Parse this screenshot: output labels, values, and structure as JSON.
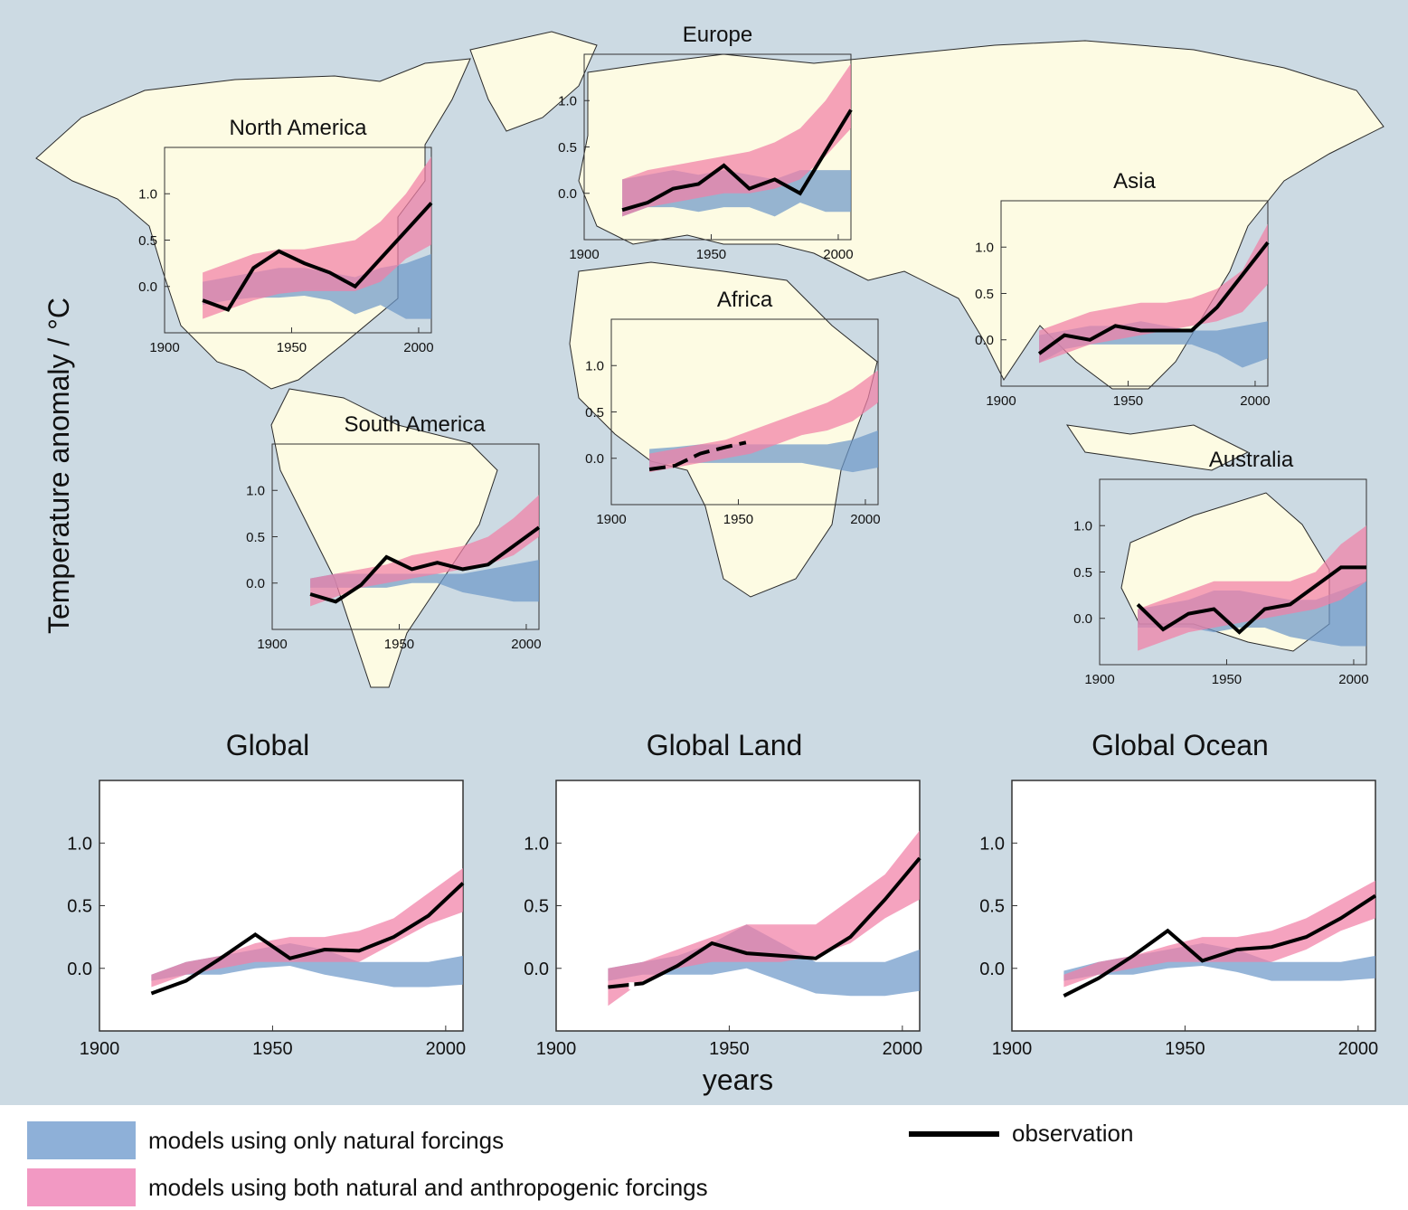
{
  "colors": {
    "background": "#ccdae3",
    "land": "#fdfbe3",
    "coast": "#2a2a2a",
    "natural_band": "#6e98c9",
    "anthro_band": "#f17fa6",
    "observation": "#000000"
  },
  "ylabel": "Temperature anomaly / °C",
  "xlabel": "years",
  "legend": {
    "natural": "models using only natural forcings",
    "anthro": "models using both natural and anthropogenic forcings",
    "observation": "observation"
  },
  "chart_data": [
    {
      "id": "north-america",
      "title": "North America",
      "type": "area",
      "x": [
        1915,
        1925,
        1935,
        1945,
        1955,
        1965,
        1975,
        1985,
        1995,
        2005
      ],
      "xticks": [
        "1900",
        "1950",
        "2000"
      ],
      "yticks": [
        "1.0",
        "0.5",
        "0.0"
      ],
      "xlim": [
        1900,
        2005
      ],
      "ylim": [
        -0.5,
        1.5
      ],
      "natural": {
        "lo": [
          -0.2,
          -0.15,
          -0.12,
          -0.12,
          -0.1,
          -0.15,
          -0.3,
          -0.2,
          -0.35,
          -0.35
        ],
        "hi": [
          0.05,
          0.1,
          0.15,
          0.2,
          0.2,
          0.15,
          0.1,
          0.2,
          0.25,
          0.35
        ]
      },
      "anthro": {
        "lo": [
          -0.35,
          -0.25,
          -0.15,
          -0.08,
          -0.05,
          -0.05,
          -0.05,
          0.05,
          0.3,
          0.45
        ],
        "hi": [
          0.15,
          0.25,
          0.35,
          0.4,
          0.4,
          0.45,
          0.5,
          0.7,
          1.0,
          1.4
        ]
      },
      "observation": [
        -0.15,
        -0.25,
        0.2,
        0.38,
        0.25,
        0.15,
        0.0,
        0.3,
        0.6,
        0.9
      ]
    },
    {
      "id": "europe",
      "title": "Europe",
      "type": "area",
      "x": [
        1915,
        1925,
        1935,
        1945,
        1955,
        1965,
        1975,
        1985,
        1995,
        2005
      ],
      "xticks": [
        "1900",
        "1950",
        "2000"
      ],
      "yticks": [
        "1.0",
        "0.5",
        "0.0"
      ],
      "xlim": [
        1900,
        2005
      ],
      "ylim": [
        -0.5,
        1.5
      ],
      "natural": {
        "lo": [
          -0.25,
          -0.15,
          -0.15,
          -0.2,
          -0.15,
          -0.15,
          -0.25,
          -0.1,
          -0.2,
          -0.2
        ],
        "hi": [
          0.15,
          0.2,
          0.25,
          0.2,
          0.25,
          0.2,
          0.15,
          0.25,
          0.25,
          0.25
        ]
      },
      "anthro": {
        "lo": [
          -0.25,
          -0.15,
          -0.1,
          -0.05,
          0.0,
          0.0,
          0.05,
          0.15,
          0.4,
          0.7
        ],
        "hi": [
          0.15,
          0.25,
          0.3,
          0.35,
          0.4,
          0.45,
          0.55,
          0.7,
          1.0,
          1.4
        ]
      },
      "observation": [
        -0.18,
        -0.1,
        0.05,
        0.1,
        0.3,
        0.05,
        0.15,
        0.0,
        0.45,
        0.9
      ]
    },
    {
      "id": "asia",
      "title": "Asia",
      "type": "area",
      "x": [
        1915,
        1925,
        1935,
        1945,
        1955,
        1965,
        1975,
        1985,
        1995,
        2005
      ],
      "xticks": [
        "1900",
        "1950",
        "2000"
      ],
      "yticks": [
        "1.0",
        "0.5",
        "0.0"
      ],
      "xlim": [
        1900,
        2005
      ],
      "ylim": [
        -0.5,
        1.5
      ],
      "natural": {
        "lo": [
          -0.25,
          -0.1,
          -0.05,
          -0.05,
          -0.05,
          -0.05,
          -0.05,
          -0.15,
          -0.3,
          -0.2
        ],
        "hi": [
          0.05,
          0.1,
          0.15,
          0.15,
          0.2,
          0.15,
          0.1,
          0.1,
          0.15,
          0.2
        ]
      },
      "anthro": {
        "lo": [
          -0.25,
          -0.15,
          -0.05,
          0.0,
          0.05,
          0.1,
          0.15,
          0.2,
          0.3,
          0.6
        ],
        "hi": [
          0.1,
          0.2,
          0.3,
          0.35,
          0.4,
          0.4,
          0.45,
          0.55,
          0.75,
          1.25
        ]
      },
      "observation": [
        -0.15,
        0.05,
        0.0,
        0.15,
        0.1,
        0.1,
        0.1,
        0.35,
        0.7,
        1.05
      ]
    },
    {
      "id": "africa",
      "title": "Africa",
      "type": "area",
      "x": [
        1915,
        1925,
        1935,
        1945,
        1955,
        1965,
        1975,
        1985,
        1995,
        2005
      ],
      "xticks": [
        "1900",
        "1950",
        "2000"
      ],
      "yticks": [
        "1.0",
        "0.5",
        "0.0"
      ],
      "xlim": [
        1900,
        2005
      ],
      "ylim": [
        -0.5,
        1.5
      ],
      "natural": {
        "lo": [
          -0.1,
          -0.05,
          -0.05,
          -0.05,
          -0.05,
          -0.05,
          -0.05,
          -0.1,
          -0.15,
          -0.1
        ],
        "hi": [
          0.1,
          0.12,
          0.15,
          0.15,
          0.15,
          0.15,
          0.15,
          0.15,
          0.2,
          0.3
        ]
      },
      "anthro": {
        "lo": [
          -0.15,
          -0.1,
          -0.05,
          0.0,
          0.05,
          0.15,
          0.25,
          0.3,
          0.4,
          0.6
        ],
        "hi": [
          0.05,
          0.1,
          0.15,
          0.2,
          0.3,
          0.4,
          0.5,
          0.6,
          0.75,
          0.95
        ]
      },
      "observation": [
        -0.12,
        -0.08,
        0.05,
        0.12,
        0.17
      ],
      "observation_x": [
        1915,
        1925,
        1935,
        1945,
        1953
      ]
    },
    {
      "id": "south-america",
      "title": "South America",
      "type": "area",
      "x": [
        1915,
        1925,
        1935,
        1945,
        1955,
        1965,
        1975,
        1985,
        1995,
        2005
      ],
      "xticks": [
        "1900",
        "1950",
        "2000"
      ],
      "yticks": [
        "1.0",
        "0.5",
        "0.0"
      ],
      "xlim": [
        1900,
        2005
      ],
      "ylim": [
        -0.5,
        1.5
      ],
      "natural": {
        "lo": [
          -0.05,
          -0.05,
          -0.05,
          -0.05,
          0.0,
          0.0,
          -0.1,
          -0.15,
          -0.2,
          -0.2
        ],
        "hi": [
          0.05,
          0.1,
          0.1,
          0.1,
          0.1,
          0.1,
          0.1,
          0.15,
          0.2,
          0.25
        ]
      },
      "anthro": {
        "lo": [
          -0.25,
          -0.15,
          -0.05,
          0.0,
          0.05,
          0.1,
          0.15,
          0.2,
          0.3,
          0.5
        ],
        "hi": [
          0.05,
          0.1,
          0.15,
          0.2,
          0.3,
          0.35,
          0.4,
          0.5,
          0.7,
          0.95
        ]
      },
      "observation": [
        -0.12,
        -0.2,
        -0.02,
        0.28,
        0.15,
        0.22,
        0.15,
        0.2,
        0.4,
        0.6
      ]
    },
    {
      "id": "australia",
      "title": "Australia",
      "type": "area",
      "x": [
        1915,
        1925,
        1935,
        1945,
        1955,
        1965,
        1975,
        1985,
        1995,
        2005
      ],
      "xticks": [
        "1900",
        "1950",
        "2000"
      ],
      "yticks": [
        "1.0",
        "0.5",
        "0.0"
      ],
      "xlim": [
        1900,
        2005
      ],
      "ylim": [
        -0.5,
        1.5
      ],
      "natural": {
        "lo": [
          -0.1,
          -0.1,
          -0.1,
          -0.15,
          -0.1,
          -0.1,
          -0.2,
          -0.25,
          -0.3,
          -0.3
        ],
        "hi": [
          0.1,
          0.15,
          0.2,
          0.3,
          0.3,
          0.25,
          0.2,
          0.2,
          0.3,
          0.4
        ]
      },
      "anthro": {
        "lo": [
          -0.35,
          -0.25,
          -0.15,
          -0.1,
          -0.05,
          0.0,
          0.05,
          0.1,
          0.2,
          0.4
        ],
        "hi": [
          0.1,
          0.2,
          0.3,
          0.4,
          0.4,
          0.4,
          0.4,
          0.5,
          0.8,
          1.0
        ]
      },
      "observation": [
        0.15,
        -0.12,
        0.05,
        0.1,
        -0.15,
        0.1,
        0.15,
        0.35,
        0.55,
        0.55
      ]
    },
    {
      "id": "global",
      "title": "Global",
      "type": "area",
      "x": [
        1915,
        1925,
        1935,
        1945,
        1955,
        1965,
        1975,
        1985,
        1995,
        2005
      ],
      "xticks": [
        "1900",
        "1950",
        "2000"
      ],
      "yticks": [
        "1.0",
        "0.5",
        "0.0"
      ],
      "xlim": [
        1900,
        2005
      ],
      "ylim": [
        -0.5,
        1.5
      ],
      "natural": {
        "lo": [
          -0.1,
          -0.05,
          -0.05,
          0.0,
          0.02,
          -0.05,
          -0.1,
          -0.15,
          -0.15,
          -0.13
        ],
        "hi": [
          -0.05,
          0.05,
          0.1,
          0.15,
          0.2,
          0.15,
          0.05,
          0.05,
          0.05,
          0.1
        ]
      },
      "anthro": {
        "lo": [
          -0.15,
          -0.05,
          0.0,
          0.05,
          0.05,
          0.05,
          0.05,
          0.2,
          0.35,
          0.45
        ],
        "hi": [
          -0.05,
          0.05,
          0.1,
          0.2,
          0.25,
          0.25,
          0.3,
          0.4,
          0.6,
          0.8
        ]
      },
      "observation": [
        -0.2,
        -0.1,
        0.08,
        0.27,
        0.08,
        0.15,
        0.14,
        0.25,
        0.42,
        0.68
      ]
    },
    {
      "id": "global-land",
      "title": "Global Land",
      "type": "area",
      "x": [
        1915,
        1925,
        1935,
        1945,
        1955,
        1965,
        1975,
        1985,
        1995,
        2005
      ],
      "xticks": [
        "1900",
        "1950",
        "2000"
      ],
      "yticks": [
        "1.0",
        "0.5",
        "0.0"
      ],
      "xlim": [
        1900,
        2005
      ],
      "ylim": [
        -0.5,
        1.5
      ],
      "natural": {
        "lo": [
          -0.1,
          -0.05,
          -0.05,
          -0.05,
          0.0,
          -0.1,
          -0.2,
          -0.22,
          -0.22,
          -0.18
        ],
        "hi": [
          0.0,
          0.05,
          0.1,
          0.2,
          0.35,
          0.2,
          0.05,
          0.05,
          0.05,
          0.15
        ]
      },
      "anthro": {
        "lo": [
          -0.3,
          -0.1,
          0.0,
          0.05,
          0.05,
          0.05,
          0.1,
          0.2,
          0.4,
          0.55
        ],
        "hi": [
          0.0,
          0.05,
          0.15,
          0.25,
          0.35,
          0.35,
          0.35,
          0.55,
          0.75,
          1.1
        ]
      },
      "observation": [
        -0.15,
        -0.12,
        0.02,
        0.2,
        0.12,
        0.1,
        0.08,
        0.25,
        0.55,
        0.88
      ],
      "observation_dashed_until": 1925
    },
    {
      "id": "global-ocean",
      "title": "Global Ocean",
      "type": "area",
      "x": [
        1915,
        1925,
        1935,
        1945,
        1955,
        1965,
        1975,
        1985,
        1995,
        2005
      ],
      "xticks": [
        "1900",
        "1950",
        "2000"
      ],
      "yticks": [
        "1.0",
        "0.5",
        "0.0"
      ],
      "xlim": [
        1900,
        2005
      ],
      "ylim": [
        -0.5,
        1.5
      ],
      "natural": {
        "lo": [
          -0.1,
          -0.05,
          -0.05,
          0.0,
          0.02,
          -0.03,
          -0.1,
          -0.1,
          -0.1,
          -0.08
        ],
        "hi": [
          -0.02,
          0.05,
          0.1,
          0.15,
          0.2,
          0.15,
          0.05,
          0.05,
          0.05,
          0.1
        ]
      },
      "anthro": {
        "lo": [
          -0.15,
          -0.05,
          0.0,
          0.05,
          0.05,
          0.05,
          0.05,
          0.15,
          0.3,
          0.4
        ],
        "hi": [
          -0.05,
          0.05,
          0.1,
          0.18,
          0.25,
          0.25,
          0.3,
          0.4,
          0.55,
          0.7
        ]
      },
      "observation": [
        -0.22,
        -0.08,
        0.1,
        0.3,
        0.06,
        0.15,
        0.17,
        0.25,
        0.4,
        0.58
      ]
    }
  ]
}
